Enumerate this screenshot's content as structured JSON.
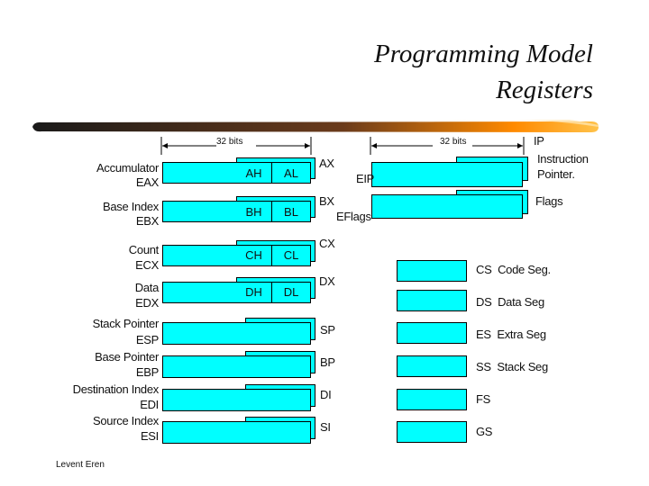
{
  "title": {
    "line1": "Programming Model",
    "line2": "Registers"
  },
  "footer": "Levent Eren",
  "general": {
    "width_label": "32 bits",
    "registers": [
      {
        "name": "Accumulator",
        "ext": "EAX",
        "hi": "AH",
        "lo": "AL",
        "short": "AX"
      },
      {
        "name": "Base Index",
        "ext": "EBX",
        "hi": "BH",
        "lo": "BL",
        "short": "BX"
      },
      {
        "name": "Count",
        "ext": "ECX",
        "hi": "CH",
        "lo": "CL",
        "short": "CX"
      },
      {
        "name": "Data",
        "ext": "EDX",
        "hi": "DH",
        "lo": "DL",
        "short": "DX"
      },
      {
        "name": "Stack Pointer",
        "ext": "ESP",
        "short": "SP"
      },
      {
        "name": "Base Pointer",
        "ext": "EBP",
        "short": "BP"
      },
      {
        "name": "Destination Index",
        "ext": "EDI",
        "short": "DI"
      },
      {
        "name": "Source Index",
        "ext": "ESI",
        "short": "SI"
      }
    ]
  },
  "special": {
    "width_label": "32 bits",
    "ip_short": "IP",
    "eip": "EIP",
    "instruction_pointer": [
      "Instruction",
      "Pointer."
    ],
    "flags": "Flags",
    "eflags": "EFlags"
  },
  "segments": [
    {
      "label": "CS  Code Seg."
    },
    {
      "label": "DS  Data Seg"
    },
    {
      "label": "ES  Extra Seg"
    },
    {
      "label": "SS  Stack Seg"
    },
    {
      "label": "FS"
    },
    {
      "label": "GS"
    }
  ]
}
